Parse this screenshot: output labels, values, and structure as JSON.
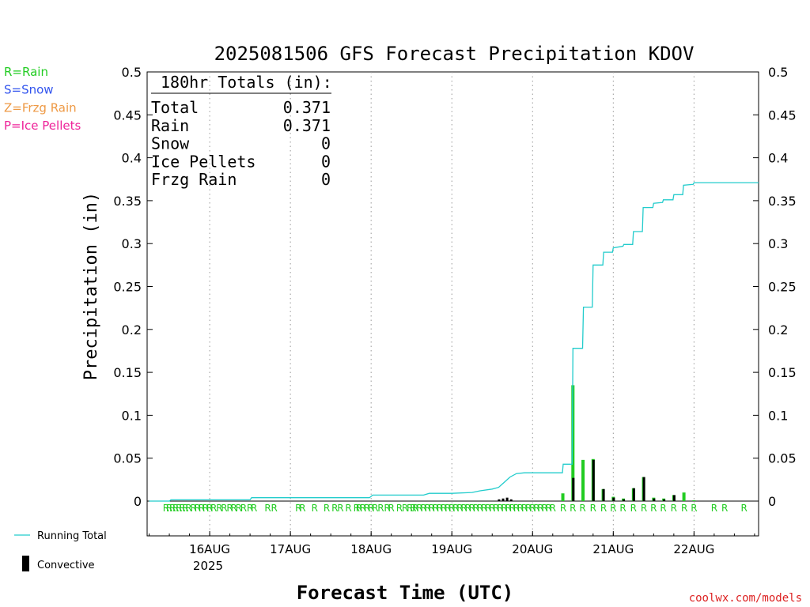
{
  "chart_data": {
    "type": "bar",
    "title": "2025081506 GFS Forecast Precipitation KDOV",
    "ylabel": "Precipitation (in)",
    "xlabel": "Forecast Time (UTC)",
    "ylim": [
      0,
      0.5
    ],
    "yticks": [
      "0",
      "0.05",
      "0.1",
      "0.15",
      "0.2",
      "0.25",
      "0.3",
      "0.35",
      "0.4",
      "0.45",
      "0.5"
    ],
    "x_range_days": [
      15.225,
      22.8
    ],
    "xticks": [
      {
        "day": 16,
        "label": "16AUG"
      },
      {
        "day": 17,
        "label": "17AUG"
      },
      {
        "day": 18,
        "label": "18AUG"
      },
      {
        "day": 19,
        "label": "19AUG"
      },
      {
        "day": 20,
        "label": "20AUG"
      },
      {
        "day": 21,
        "label": "21AUG"
      },
      {
        "day": 22,
        "label": "22AUG"
      }
    ],
    "year_label": "2025",
    "grid": "vertical dotted at each day",
    "legend_left": [
      {
        "label": "R=Rain",
        "color": "#22cc22"
      },
      {
        "label": "S=Snow",
        "color": "#3355ee"
      },
      {
        "label": "Z=Frzg Rain",
        "color": "#ee9944"
      },
      {
        "label": "P=Ice Pellets",
        "color": "#ee2299"
      }
    ],
    "legend_bottom": [
      {
        "label": "Running Total",
        "color": "#22cccc"
      },
      {
        "label": "Convective",
        "color": "#000000"
      }
    ],
    "totals": {
      "heading": "180hr Totals (in):",
      "rows": [
        {
          "label": "Total",
          "value": "0.371"
        },
        {
          "label": "Rain",
          "value": "0.371"
        },
        {
          "label": "Snow",
          "value": "0"
        },
        {
          "label": "Ice Pellets",
          "value": "0"
        },
        {
          "label": "Frzg Rain",
          "value": "0"
        }
      ]
    },
    "running_total": [
      [
        15.25,
        0.0
      ],
      [
        15.5,
        0.0
      ],
      [
        15.52,
        0.0015
      ],
      [
        16.0,
        0.0015
      ],
      [
        16.5,
        0.0015
      ],
      [
        16.52,
        0.004
      ],
      [
        17.0,
        0.004
      ],
      [
        17.5,
        0.004
      ],
      [
        17.98,
        0.004
      ],
      [
        18.02,
        0.007
      ],
      [
        18.5,
        0.007
      ],
      [
        18.65,
        0.007
      ],
      [
        18.72,
        0.009
      ],
      [
        19.0,
        0.009
      ],
      [
        19.25,
        0.01
      ],
      [
        19.35,
        0.012
      ],
      [
        19.5,
        0.014
      ],
      [
        19.58,
        0.016
      ],
      [
        19.65,
        0.022
      ],
      [
        19.72,
        0.028
      ],
      [
        19.8,
        0.032
      ],
      [
        19.9,
        0.033
      ],
      [
        20.0,
        0.033
      ],
      [
        20.37,
        0.033
      ],
      [
        20.38,
        0.043
      ],
      [
        20.49,
        0.043
      ],
      [
        20.5,
        0.178
      ],
      [
        20.62,
        0.178
      ],
      [
        20.63,
        0.226
      ],
      [
        20.74,
        0.226
      ],
      [
        20.75,
        0.275
      ],
      [
        20.87,
        0.275
      ],
      [
        20.88,
        0.29
      ],
      [
        20.99,
        0.29
      ],
      [
        21.0,
        0.295
      ],
      [
        21.12,
        0.297
      ],
      [
        21.13,
        0.299
      ],
      [
        21.24,
        0.299
      ],
      [
        21.25,
        0.314
      ],
      [
        21.36,
        0.314
      ],
      [
        21.37,
        0.342
      ],
      [
        21.49,
        0.342
      ],
      [
        21.5,
        0.347
      ],
      [
        21.61,
        0.348
      ],
      [
        21.62,
        0.351
      ],
      [
        21.74,
        0.351
      ],
      [
        21.75,
        0.357
      ],
      [
        21.86,
        0.357
      ],
      [
        21.87,
        0.368
      ],
      [
        21.99,
        0.369
      ],
      [
        22.0,
        0.371
      ],
      [
        22.8,
        0.371
      ]
    ],
    "rain_bars": [
      {
        "day": 20.375,
        "value": 0.009
      },
      {
        "day": 20.5,
        "value": 0.135
      },
      {
        "day": 20.625,
        "value": 0.048
      },
      {
        "day": 20.75,
        "value": 0.049
      },
      {
        "day": 20.875,
        "value": 0.014
      },
      {
        "day": 21.0,
        "value": 0.005
      },
      {
        "day": 21.125,
        "value": 0.003
      },
      {
        "day": 21.25,
        "value": 0.015
      },
      {
        "day": 21.375,
        "value": 0.028
      },
      {
        "day": 21.5,
        "value": 0.004
      },
      {
        "day": 21.625,
        "value": 0.003
      },
      {
        "day": 21.75,
        "value": 0.007
      },
      {
        "day": 21.875,
        "value": 0.01
      },
      {
        "day": 22.0,
        "value": 0.001
      }
    ],
    "convective_bars": [
      {
        "day": 19.58,
        "value": 0.002
      },
      {
        "day": 19.63,
        "value": 0.003
      },
      {
        "day": 19.68,
        "value": 0.004
      },
      {
        "day": 19.73,
        "value": 0.002
      },
      {
        "day": 20.5,
        "value": 0.027
      },
      {
        "day": 20.75,
        "value": 0.048
      },
      {
        "day": 20.875,
        "value": 0.014
      },
      {
        "day": 21.0,
        "value": 0.004
      },
      {
        "day": 21.125,
        "value": 0.002
      },
      {
        "day": 21.25,
        "value": 0.015
      },
      {
        "day": 21.375,
        "value": 0.028
      },
      {
        "day": 21.5,
        "value": 0.003
      },
      {
        "day": 21.625,
        "value": 0.002
      },
      {
        "day": 21.75,
        "value": 0.007
      }
    ],
    "rain_marker": "R",
    "rain_marker_positions": [
      15.46,
      15.5,
      15.54,
      15.58,
      15.62,
      15.66,
      15.7,
      15.74,
      15.8,
      15.85,
      15.9,
      15.95,
      16.0,
      16.05,
      16.12,
      16.18,
      16.25,
      16.3,
      16.36,
      16.42,
      16.5,
      16.55,
      16.72,
      16.8,
      17.1,
      17.15,
      17.3,
      17.45,
      17.55,
      17.62,
      17.72,
      17.82,
      17.85,
      17.9,
      17.95,
      18.0,
      18.05,
      18.12,
      18.2,
      18.25,
      18.35,
      18.42,
      18.48,
      18.52,
      18.55,
      18.6,
      18.65,
      18.7,
      18.75,
      18.8,
      18.85,
      18.9,
      18.95,
      19.0,
      19.05,
      19.1,
      19.15,
      19.2,
      19.25,
      19.3,
      19.35,
      19.4,
      19.45,
      19.5,
      19.55,
      19.6,
      19.65,
      19.7,
      19.75,
      19.8,
      19.85,
      19.9,
      19.95,
      20.0,
      20.05,
      20.1,
      20.15,
      20.2,
      20.25,
      20.38,
      20.5,
      20.62,
      20.75,
      20.88,
      21.0,
      21.12,
      21.25,
      21.38,
      21.5,
      21.62,
      21.75,
      21.88,
      22.0,
      22.25,
      22.38,
      22.62
    ],
    "colors": {
      "rain": "#22cc22",
      "running_total": "#22cccc",
      "convective": "#000000",
      "credit": "#dd2222",
      "grid": "#999999"
    }
  },
  "credit": "coolwx.com/models"
}
